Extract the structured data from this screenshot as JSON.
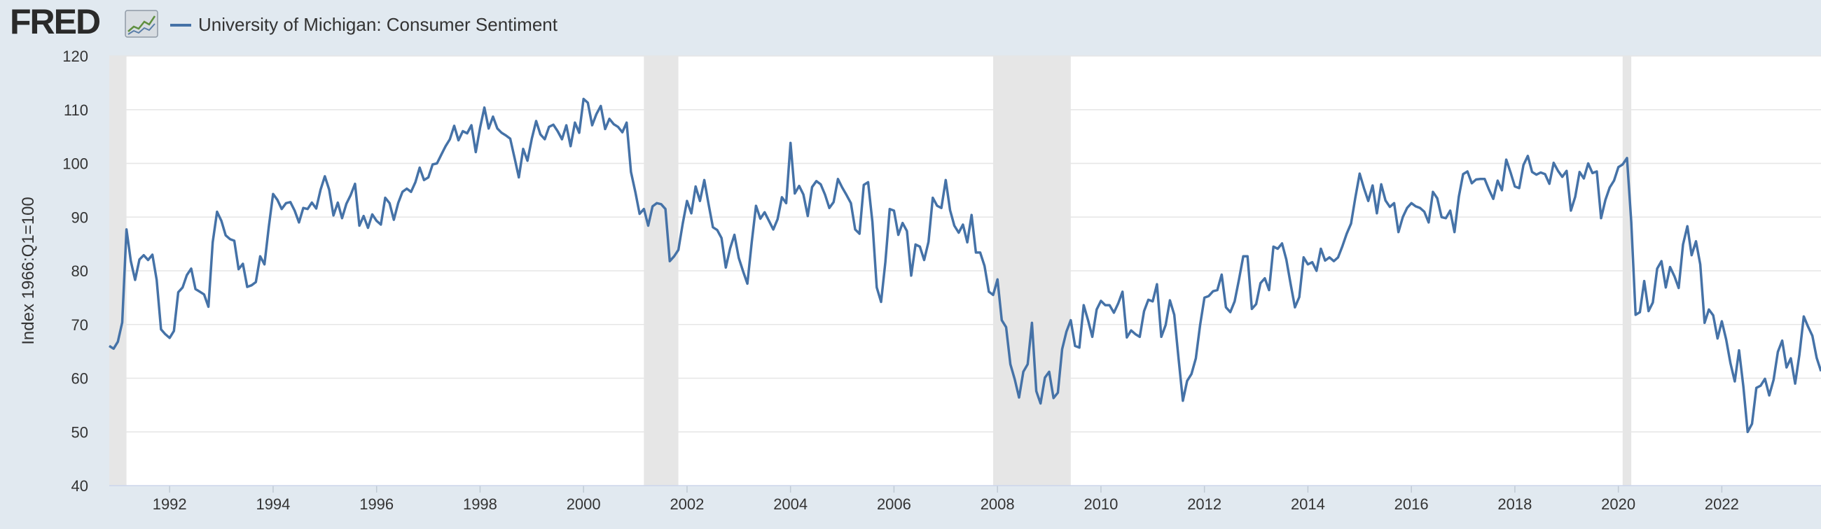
{
  "header": {
    "logo_text": "FRED",
    "series_legend": "University of Michigan: Consumer Sentiment"
  },
  "colors": {
    "background": "#e1e9f0",
    "plot_background": "#ffffff",
    "series_line": "#4572a7",
    "recession_band": "#e6e6e6",
    "grid": "#e6e6e6"
  },
  "icons": [
    "fred-logo-icon"
  ],
  "chart_data": {
    "type": "line",
    "title": "",
    "xlabel": "",
    "ylabel": "Index 1966:Q1=100",
    "xlim": [
      "1990-11",
      "2023-12"
    ],
    "ylim": [
      40,
      120
    ],
    "yticks": [
      40,
      50,
      60,
      70,
      80,
      90,
      100,
      110,
      120
    ],
    "xticks": [
      "1992",
      "1994",
      "1996",
      "1998",
      "2000",
      "2002",
      "2004",
      "2006",
      "2008",
      "2010",
      "2012",
      "2014",
      "2016",
      "2018",
      "2020",
      "2022"
    ],
    "grid": true,
    "legend": "top-left",
    "recessions": [
      {
        "start": "1990-11",
        "end": "1991-03"
      },
      {
        "start": "2001-03",
        "end": "2001-11"
      },
      {
        "start": "2007-12",
        "end": "2009-06"
      },
      {
        "start": "2020-02",
        "end": "2020-04"
      }
    ],
    "series": [
      {
        "name": "University of Michigan: Consumer Sentiment",
        "start": "1990-11",
        "frequency": "monthly",
        "values": [
          66.0,
          65.5,
          66.8,
          70.4,
          87.7,
          81.8,
          78.3,
          82.1,
          82.9,
          82.0,
          83.0,
          78.3,
          69.1,
          68.2,
          67.5,
          68.8,
          76.0,
          76.9,
          79.2,
          80.4,
          76.6,
          76.1,
          75.6,
          73.3,
          85.3,
          91.0,
          89.3,
          86.6,
          85.9,
          85.6,
          80.3,
          81.3,
          77.0,
          77.3,
          77.9,
          82.7,
          81.2,
          88.2,
          94.3,
          93.2,
          91.5,
          92.6,
          92.8,
          91.2,
          89.0,
          91.7,
          91.5,
          92.7,
          91.6,
          95.1,
          97.6,
          95.1,
          90.3,
          92.7,
          89.8,
          92.5,
          94.1,
          96.2,
          88.4,
          90.2,
          88.0,
          90.5,
          89.3,
          88.6,
          93.6,
          92.6,
          89.5,
          92.6,
          94.7,
          95.3,
          94.7,
          96.5,
          99.2,
          96.9,
          97.4,
          99.8,
          100.0,
          101.6,
          103.2,
          104.5,
          107.0,
          104.3,
          106.0,
          105.6,
          107.1,
          102.1,
          106.6,
          110.4,
          106.5,
          108.7,
          106.5,
          105.7,
          105.2,
          104.6,
          101.0,
          97.4,
          102.7,
          100.5,
          104.6,
          107.9,
          105.4,
          104.5,
          106.8,
          107.2,
          106.0,
          104.5,
          107.1,
          103.2,
          107.6,
          105.7,
          112.0,
          111.3,
          107.1,
          109.2,
          110.7,
          106.4,
          108.3,
          107.3,
          106.8,
          105.8,
          107.6,
          98.4,
          94.7,
          90.6,
          91.5,
          88.4,
          92.0,
          92.6,
          92.4,
          91.5,
          81.8,
          82.7,
          83.9,
          88.8,
          93.0,
          90.7,
          95.7,
          93.0,
          96.9,
          92.4,
          88.1,
          87.6,
          86.1,
          80.6,
          84.2,
          86.7,
          82.4,
          79.9,
          77.6,
          85.3,
          92.1,
          89.7,
          90.9,
          89.3,
          87.7,
          89.6,
          93.7,
          92.6,
          103.8,
          94.4,
          95.8,
          94.2,
          90.2,
          95.6,
          96.7,
          96.1,
          94.2,
          91.7,
          92.8,
          97.1,
          95.5,
          94.1,
          92.6,
          87.7,
          86.9,
          96.0,
          96.5,
          89.1,
          76.9,
          74.2,
          81.6,
          91.5,
          91.2,
          86.7,
          88.9,
          87.4,
          79.1,
          84.9,
          84.5,
          82.0,
          85.4,
          93.6,
          92.1,
          91.7,
          96.9,
          91.3,
          88.4,
          87.1,
          88.6,
          85.3,
          90.4,
          83.4,
          83.4,
          80.9,
          76.1,
          75.5,
          78.4,
          70.8,
          69.5,
          62.6,
          59.8,
          56.4,
          61.2,
          62.6,
          70.3,
          57.6,
          55.3,
          60.1,
          61.2,
          56.3,
          57.3,
          65.4,
          68.7,
          70.8,
          66.0,
          65.7,
          73.6,
          70.8,
          67.7,
          72.8,
          74.4,
          73.6,
          73.6,
          72.2,
          73.9,
          76.1,
          67.6,
          68.9,
          68.2,
          67.7,
          72.5,
          74.6,
          74.3,
          77.5,
          67.7,
          69.9,
          74.5,
          71.8,
          63.7,
          55.8,
          59.5,
          60.8,
          63.7,
          69.9,
          75.0,
          75.3,
          76.2,
          76.4,
          79.3,
          73.2,
          72.3,
          74.3,
          78.3,
          82.7,
          82.7,
          72.9,
          73.8,
          77.7,
          78.6,
          76.4,
          84.5,
          84.1,
          85.1,
          82.1,
          77.5,
          73.2,
          75.1,
          82.5,
          81.2,
          81.6,
          80.0,
          84.1,
          81.9,
          82.5,
          81.8,
          82.5,
          84.6,
          86.9,
          88.8,
          93.6,
          98.1,
          95.4,
          93.0,
          95.9,
          90.7,
          96.1,
          93.1,
          91.9,
          92.6,
          87.2,
          90.0,
          91.7,
          92.6,
          92.0,
          91.7,
          91.0,
          89.0,
          94.7,
          93.5,
          90.0,
          89.8,
          91.2,
          87.2,
          93.8,
          98.0,
          98.5,
          96.3,
          97.0,
          97.1,
          97.1,
          95.1,
          93.4,
          96.8,
          95.0,
          100.7,
          98.3,
          95.7,
          95.4,
          99.7,
          101.4,
          98.4,
          97.9,
          98.3,
          98.0,
          96.2,
          100.1,
          98.6,
          97.5,
          98.6,
          91.2,
          93.8,
          98.4,
          97.2,
          100.0,
          98.2,
          98.5,
          89.8,
          93.2,
          95.5,
          96.8,
          99.3,
          99.8,
          101.0,
          89.1,
          71.8,
          72.3,
          78.1,
          72.5,
          74.1,
          80.4,
          81.8,
          76.9,
          80.7,
          79.0,
          76.8,
          84.9,
          88.3,
          82.9,
          85.5,
          81.2,
          70.3,
          72.8,
          71.7,
          67.4,
          70.6,
          67.2,
          62.8,
          59.4,
          65.2,
          58.4,
          50.0,
          51.5,
          58.2,
          58.6,
          59.9,
          56.8,
          59.7,
          64.9,
          67.0,
          62.0,
          63.7,
          59.0,
          64.4,
          71.5,
          69.6,
          67.9,
          63.8,
          61.3
        ]
      }
    ]
  }
}
